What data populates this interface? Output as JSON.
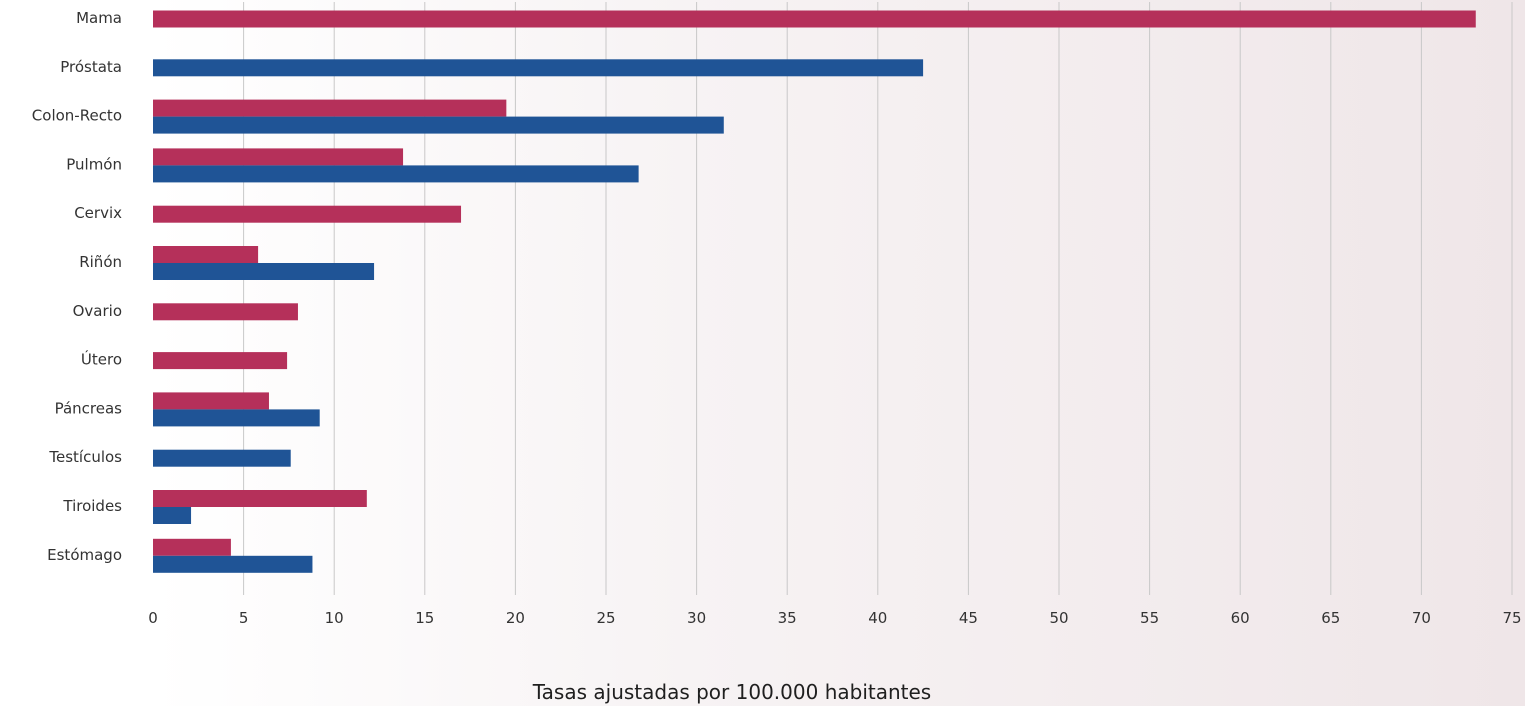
{
  "colors": {
    "women": "#b5305a",
    "men": "#1f5496",
    "grid": "#c8c8c8"
  },
  "chart_data": {
    "type": "bar",
    "orientation": "horizontal",
    "categories": [
      "Mama",
      "Próstata",
      "Colon-Recto",
      "Pulmón",
      "Cervix",
      "Riñón",
      "Ovario",
      "Útero",
      "Páncreas",
      "Testículos",
      "Tiroides",
      "Estómago"
    ],
    "series": [
      {
        "color": "#b5305a",
        "values": [
          73,
          null,
          19.5,
          13.8,
          17,
          5.8,
          8,
          7.4,
          6.4,
          null,
          11.8,
          4.3
        ]
      },
      {
        "color": "#1f5496",
        "values": [
          null,
          42.5,
          31.5,
          26.8,
          null,
          12.2,
          null,
          null,
          9.2,
          7.6,
          2.1,
          8.8
        ]
      }
    ],
    "xlim": [
      0,
      75
    ],
    "xticks": [
      "0",
      "5",
      "10",
      "15",
      "20",
      "25",
      "30",
      "35",
      "40",
      "45",
      "50",
      "55",
      "60",
      "65",
      "70",
      "75"
    ],
    "xlabel": "Tasas ajustadas por 100.000 habitantes",
    "ylabel": "",
    "title": "",
    "grid": true,
    "legend": null
  }
}
